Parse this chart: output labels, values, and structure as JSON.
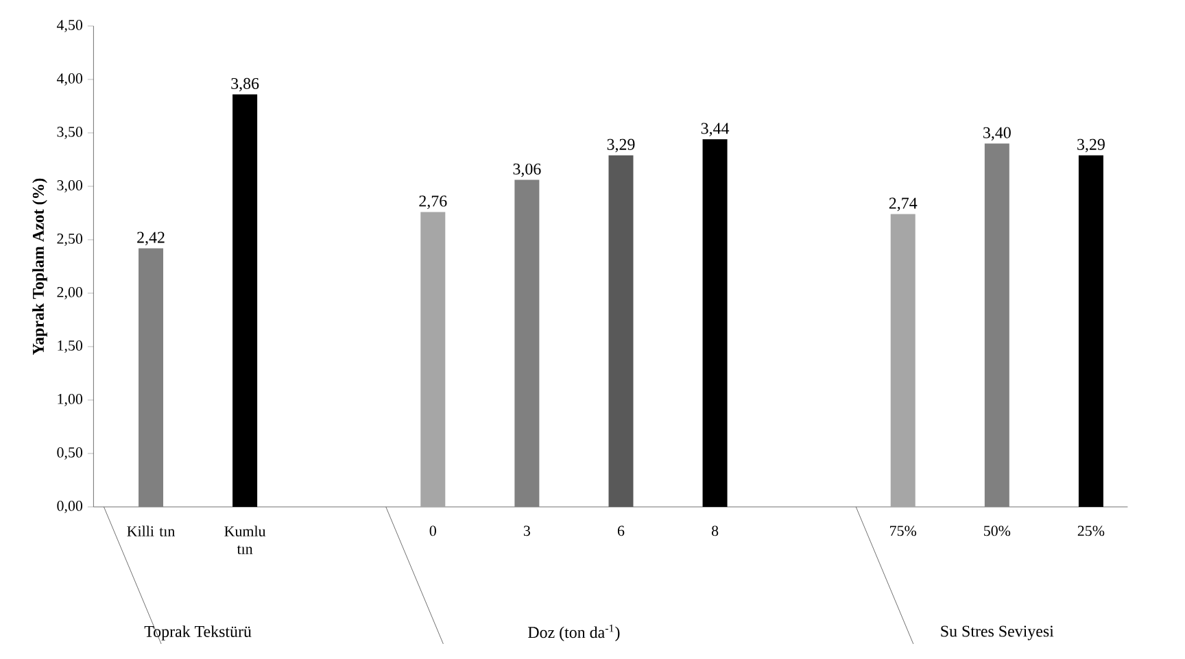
{
  "chart_data": {
    "type": "bar",
    "ylabel": "Yaprak Toplam Azot (%)",
    "categories": [
      "Killi tın",
      "Kumlu tın",
      null,
      "0",
      "3",
      "6",
      "8",
      null,
      "75%",
      "50%",
      "25%"
    ],
    "values": [
      2.42,
      3.86,
      null,
      2.76,
      3.06,
      3.29,
      3.44,
      null,
      2.74,
      3.4,
      3.29
    ],
    "colors": [
      "#808080",
      "#000000",
      null,
      "#a6a6a6",
      "#808080",
      "#595959",
      "#000000",
      null,
      "#a6a6a6",
      "#808080",
      "#000000"
    ],
    "value_labels": [
      "2,42",
      "3,86",
      null,
      "2,76",
      "3,06",
      "3,29",
      "3,44",
      null,
      "2,74",
      "3,40",
      "3,29"
    ],
    "annotations": [
      "Toprak Tekstürü",
      "Doz (ton da$^{-1}$)",
      "Su Stres Seviyesi"
    ],
    "ylim": [
      0,
      4.5
    ],
    "yticks": [
      {
        "value": 0,
        "label": "0,00"
      },
      {
        "value": 0.5,
        "label": "0,50"
      },
      {
        "value": 1,
        "label": "1,00"
      },
      {
        "value": 1.5,
        "label": "1,50"
      },
      {
        "value": 2,
        "label": "2,00"
      },
      {
        "value": 2.5,
        "label": "2,50"
      },
      {
        "value": 3,
        "label": "3,00"
      },
      {
        "value": 3.5,
        "label": "3,50"
      },
      {
        "value": 4,
        "label": "4,00"
      },
      {
        "value": 4.5,
        "label": "4,50"
      }
    ],
    "grid": false
  }
}
